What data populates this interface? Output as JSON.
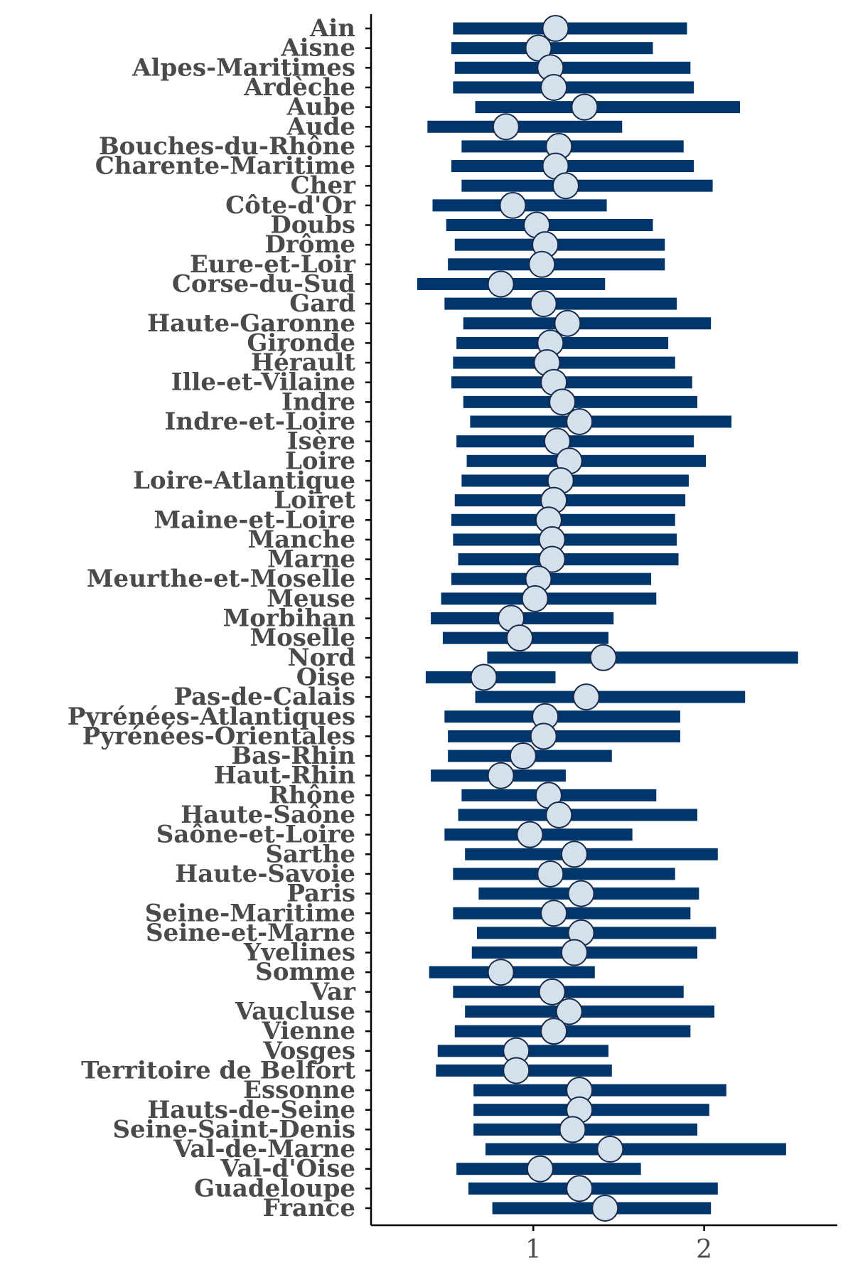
{
  "chart_data": {
    "type": "forest",
    "xlim": [
      0.05,
      2.78
    ],
    "xticks": [
      1,
      2
    ],
    "xtick_labels": [
      "1",
      "2"
    ],
    "grid": false,
    "colors": {
      "bar": "#00366b",
      "point_fill": "#d3e1ec",
      "point_stroke": "#1a2a4a",
      "axis": "#000000",
      "label": "#4a4a4a"
    },
    "rows": [
      {
        "label": "Ain",
        "estimate": 1.13,
        "lower": 0.53,
        "upper": 1.9
      },
      {
        "label": "Aisne",
        "estimate": 1.03,
        "lower": 0.52,
        "upper": 1.7
      },
      {
        "label": "Alpes-Maritimes",
        "estimate": 1.1,
        "lower": 0.54,
        "upper": 1.92
      },
      {
        "label": "Ardèche",
        "estimate": 1.12,
        "lower": 0.53,
        "upper": 1.94
      },
      {
        "label": "Aube",
        "estimate": 1.3,
        "lower": 0.66,
        "upper": 2.21
      },
      {
        "label": "Aude",
        "estimate": 0.84,
        "lower": 0.38,
        "upper": 1.52
      },
      {
        "label": "Bouches-du-Rhône",
        "estimate": 1.15,
        "lower": 0.58,
        "upper": 1.88
      },
      {
        "label": "Charente-Maritime",
        "estimate": 1.13,
        "lower": 0.52,
        "upper": 1.94
      },
      {
        "label": "Cher",
        "estimate": 1.19,
        "lower": 0.58,
        "upper": 2.05
      },
      {
        "label": "Côte-d'Or",
        "estimate": 0.88,
        "lower": 0.41,
        "upper": 1.43
      },
      {
        "label": "Doubs",
        "estimate": 1.02,
        "lower": 0.49,
        "upper": 1.7
      },
      {
        "label": "Drôme",
        "estimate": 1.07,
        "lower": 0.54,
        "upper": 1.77
      },
      {
        "label": "Eure-et-Loir",
        "estimate": 1.05,
        "lower": 0.5,
        "upper": 1.77
      },
      {
        "label": "Corse-du-Sud",
        "estimate": 0.81,
        "lower": 0.32,
        "upper": 1.42
      },
      {
        "label": "Gard",
        "estimate": 1.06,
        "lower": 0.48,
        "upper": 1.84
      },
      {
        "label": "Haute-Garonne",
        "estimate": 1.2,
        "lower": 0.59,
        "upper": 2.04
      },
      {
        "label": "Gironde",
        "estimate": 1.1,
        "lower": 0.55,
        "upper": 1.79
      },
      {
        "label": "Hérault",
        "estimate": 1.08,
        "lower": 0.53,
        "upper": 1.83
      },
      {
        "label": "Ille-et-Vilaine",
        "estimate": 1.12,
        "lower": 0.52,
        "upper": 1.93
      },
      {
        "label": "Indre",
        "estimate": 1.17,
        "lower": 0.59,
        "upper": 1.96
      },
      {
        "label": "Indre-et-Loire",
        "estimate": 1.27,
        "lower": 0.63,
        "upper": 2.16
      },
      {
        "label": "Isère",
        "estimate": 1.14,
        "lower": 0.55,
        "upper": 1.94
      },
      {
        "label": "Loire",
        "estimate": 1.21,
        "lower": 0.61,
        "upper": 2.01
      },
      {
        "label": "Loire-Atlantique",
        "estimate": 1.16,
        "lower": 0.58,
        "upper": 1.91
      },
      {
        "label": "Loiret",
        "estimate": 1.12,
        "lower": 0.54,
        "upper": 1.89
      },
      {
        "label": "Maine-et-Loire",
        "estimate": 1.09,
        "lower": 0.52,
        "upper": 1.83
      },
      {
        "label": "Manche",
        "estimate": 1.11,
        "lower": 0.53,
        "upper": 1.84
      },
      {
        "label": "Marne",
        "estimate": 1.11,
        "lower": 0.56,
        "upper": 1.85
      },
      {
        "label": "Meurthe-et-Moselle",
        "estimate": 1.03,
        "lower": 0.52,
        "upper": 1.69
      },
      {
        "label": "Meuse",
        "estimate": 1.01,
        "lower": 0.46,
        "upper": 1.72
      },
      {
        "label": "Morbihan",
        "estimate": 0.87,
        "lower": 0.4,
        "upper": 1.47
      },
      {
        "label": "Moselle",
        "estimate": 0.92,
        "lower": 0.47,
        "upper": 1.44
      },
      {
        "label": "Nord",
        "estimate": 1.41,
        "lower": 0.73,
        "upper": 2.55
      },
      {
        "label": "Oise",
        "estimate": 0.71,
        "lower": 0.37,
        "upper": 1.13
      },
      {
        "label": "Pas-de-Calais",
        "estimate": 1.31,
        "lower": 0.66,
        "upper": 2.24
      },
      {
        "label": "Pyrénées-Atlantiques",
        "estimate": 1.07,
        "lower": 0.48,
        "upper": 1.86
      },
      {
        "label": "Pyrénées-Orientales",
        "estimate": 1.06,
        "lower": 0.5,
        "upper": 1.86
      },
      {
        "label": "Bas-Rhin",
        "estimate": 0.94,
        "lower": 0.5,
        "upper": 1.46
      },
      {
        "label": "Haut-Rhin",
        "estimate": 0.81,
        "lower": 0.4,
        "upper": 1.19
      },
      {
        "label": "Rhône",
        "estimate": 1.09,
        "lower": 0.58,
        "upper": 1.72
      },
      {
        "label": "Haute-Saône",
        "estimate": 1.15,
        "lower": 0.56,
        "upper": 1.96
      },
      {
        "label": "Saône-et-Loire",
        "estimate": 0.98,
        "lower": 0.48,
        "upper": 1.58
      },
      {
        "label": "Sarthe",
        "estimate": 1.24,
        "lower": 0.6,
        "upper": 2.08
      },
      {
        "label": "Haute-Savoie",
        "estimate": 1.1,
        "lower": 0.53,
        "upper": 1.83
      },
      {
        "label": "Paris",
        "estimate": 1.28,
        "lower": 0.68,
        "upper": 1.97
      },
      {
        "label": "Seine-Maritime",
        "estimate": 1.12,
        "lower": 0.53,
        "upper": 1.92
      },
      {
        "label": "Seine-et-Marne",
        "estimate": 1.28,
        "lower": 0.67,
        "upper": 2.07
      },
      {
        "label": "Yvelines",
        "estimate": 1.24,
        "lower": 0.64,
        "upper": 1.96
      },
      {
        "label": "Somme",
        "estimate": 0.81,
        "lower": 0.39,
        "upper": 1.36
      },
      {
        "label": "Var",
        "estimate": 1.11,
        "lower": 0.53,
        "upper": 1.88
      },
      {
        "label": "Vaucluse",
        "estimate": 1.21,
        "lower": 0.6,
        "upper": 2.06
      },
      {
        "label": "Vienne",
        "estimate": 1.12,
        "lower": 0.54,
        "upper": 1.92
      },
      {
        "label": "Vosges",
        "estimate": 0.9,
        "lower": 0.44,
        "upper": 1.44
      },
      {
        "label": "Territoire de Belfort",
        "estimate": 0.9,
        "lower": 0.43,
        "upper": 1.46
      },
      {
        "label": "Essonne",
        "estimate": 1.27,
        "lower": 0.65,
        "upper": 2.13
      },
      {
        "label": "Hauts-de-Seine",
        "estimate": 1.27,
        "lower": 0.65,
        "upper": 2.03
      },
      {
        "label": "Seine-Saint-Denis",
        "estimate": 1.23,
        "lower": 0.65,
        "upper": 1.96
      },
      {
        "label": "Val-de-Marne",
        "estimate": 1.45,
        "lower": 0.72,
        "upper": 2.48
      },
      {
        "label": "Val-d'Oise",
        "estimate": 1.04,
        "lower": 0.55,
        "upper": 1.63
      },
      {
        "label": "Guadeloupe",
        "estimate": 1.27,
        "lower": 0.62,
        "upper": 2.08
      },
      {
        "label": "France",
        "estimate": 1.42,
        "lower": 0.76,
        "upper": 2.04
      }
    ]
  }
}
